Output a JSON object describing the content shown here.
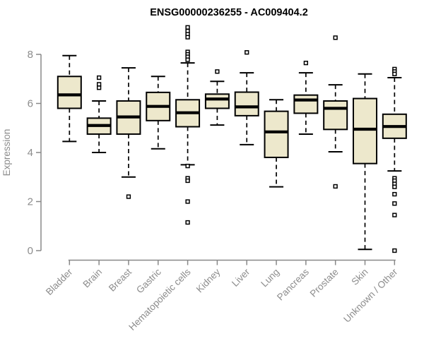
{
  "title": "ENSG00000236255 - AC009404.2",
  "colors": {
    "background": "#ffffff",
    "box_fill": "#ede8cc",
    "box_stroke": "#000000",
    "median": "#000000",
    "whisker": "#000000",
    "outlier_fill": "#ffffff",
    "axis_line": "#888888",
    "tick_text": "#8c8c8c",
    "title_text": "#000000"
  },
  "chart_data": {
    "type": "boxplot",
    "title": "ENSG00000236255 - AC009404.2",
    "ylabel": "Expression",
    "xlabel": "",
    "ylim": [
      0,
      8
    ],
    "yticks": [
      0,
      2,
      4,
      6,
      8
    ],
    "grid": false,
    "legend": "none",
    "categories": [
      "Bladder",
      "Brain",
      "Breast",
      "Gastric",
      "Hematopoietic cells",
      "Kidney",
      "Liver",
      "Lung",
      "Pancreas",
      "Prostate",
      "Skin",
      "Unknown / Other"
    ],
    "series": [
      {
        "name": "Bladder",
        "whisker_low": 4.45,
        "q1": 5.8,
        "median": 6.35,
        "q3": 7.1,
        "whisker_high": 7.95,
        "outliers": []
      },
      {
        "name": "Brain",
        "whisker_low": 4.0,
        "q1": 4.75,
        "median": 5.1,
        "q3": 5.4,
        "whisker_high": 6.1,
        "outliers": [
          7.05,
          6.78,
          6.64
        ]
      },
      {
        "name": "Breast",
        "whisker_low": 3.0,
        "q1": 4.75,
        "median": 5.45,
        "q3": 6.1,
        "whisker_high": 7.45,
        "outliers": [
          2.2
        ]
      },
      {
        "name": "Gastric",
        "whisker_low": 4.15,
        "q1": 5.3,
        "median": 5.88,
        "q3": 6.45,
        "whisker_high": 7.1,
        "outliers": []
      },
      {
        "name": "Hematopoietic cells",
        "whisker_low": 3.5,
        "q1": 5.05,
        "median": 5.62,
        "q3": 6.15,
        "whisker_high": 7.65,
        "outliers": [
          9.1,
          8.95,
          8.82,
          8.7,
          8.1,
          8.0,
          7.9,
          7.78,
          3.45,
          2.95,
          2.85,
          2.0,
          1.15
        ]
      },
      {
        "name": "Kidney",
        "whisker_low": 5.12,
        "q1": 5.8,
        "median": 6.18,
        "q3": 6.38,
        "whisker_high": 6.9,
        "outliers": [
          7.3
        ]
      },
      {
        "name": "Liver",
        "whisker_low": 4.32,
        "q1": 5.5,
        "median": 5.86,
        "q3": 6.46,
        "whisker_high": 7.25,
        "outliers": [
          8.08
        ]
      },
      {
        "name": "Lung",
        "whisker_low": 2.6,
        "q1": 3.8,
        "median": 4.84,
        "q3": 5.68,
        "whisker_high": 6.15,
        "outliers": []
      },
      {
        "name": "Pancreas",
        "whisker_low": 4.75,
        "q1": 5.6,
        "median": 6.14,
        "q3": 6.34,
        "whisker_high": 7.25,
        "outliers": [
          7.65
        ]
      },
      {
        "name": "Prostate",
        "whisker_low": 4.03,
        "q1": 4.94,
        "median": 5.8,
        "q3": 6.1,
        "whisker_high": 6.76,
        "outliers": [
          8.68,
          2.62
        ]
      },
      {
        "name": "Skin",
        "whisker_low": 0.05,
        "q1": 3.55,
        "median": 4.95,
        "q3": 6.2,
        "whisker_high": 7.2,
        "outliers": []
      },
      {
        "name": "Unknown / Other",
        "whisker_low": 3.25,
        "q1": 4.58,
        "median": 5.06,
        "q3": 5.56,
        "whisker_high": 7.05,
        "outliers": [
          7.4,
          7.3,
          7.2,
          2.95,
          2.85,
          2.72,
          2.6,
          2.3,
          1.92,
          1.45,
          0.0
        ]
      }
    ]
  }
}
